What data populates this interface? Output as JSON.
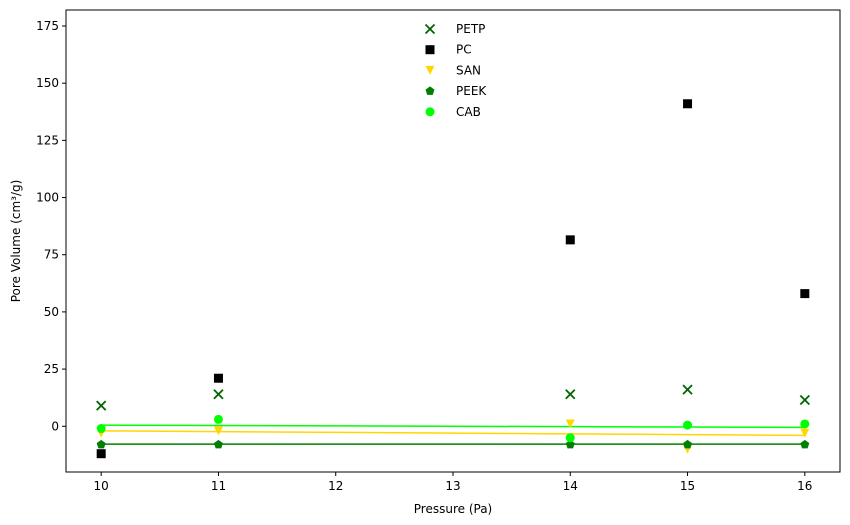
{
  "chart_data": {
    "type": "scatter",
    "title": "",
    "xlabel": "Pressure (Pa)",
    "ylabel": "Pore Volume (cm³/g)",
    "xlim": [
      9.7,
      16.3
    ],
    "ylim": [
      -20,
      182
    ],
    "xticks": [
      10,
      11,
      12,
      13,
      14,
      15,
      16
    ],
    "yticks": [
      0,
      25,
      50,
      75,
      100,
      125,
      150,
      175
    ],
    "grid": false,
    "legend_position": "top-center",
    "x": [
      10,
      11,
      14,
      15,
      16
    ],
    "series": [
      {
        "name": "PETP",
        "marker": "x",
        "color": "#006400",
        "values": [
          9,
          14,
          14,
          16,
          11.5
        ]
      },
      {
        "name": "PC",
        "marker": "square",
        "color": "#000000",
        "values": [
          -12,
          21,
          81.5,
          141,
          58
        ]
      },
      {
        "name": "SAN",
        "marker": "triangle-down",
        "color": "#ffd700",
        "values": [
          -3,
          -2,
          1,
          -10,
          -3
        ],
        "fit": [
          -2,
          -4
        ]
      },
      {
        "name": "PEEK",
        "marker": "pentagon",
        "color": "#008000",
        "values": [
          -8,
          -8,
          -8,
          -8,
          -8
        ],
        "fit": [
          -7.8,
          -7.8
        ]
      },
      {
        "name": "CAB",
        "marker": "circle",
        "color": "#00ff00",
        "values": [
          -1,
          3,
          -5,
          0.5,
          1
        ],
        "fit": [
          0.5,
          -0.5
        ]
      }
    ]
  }
}
